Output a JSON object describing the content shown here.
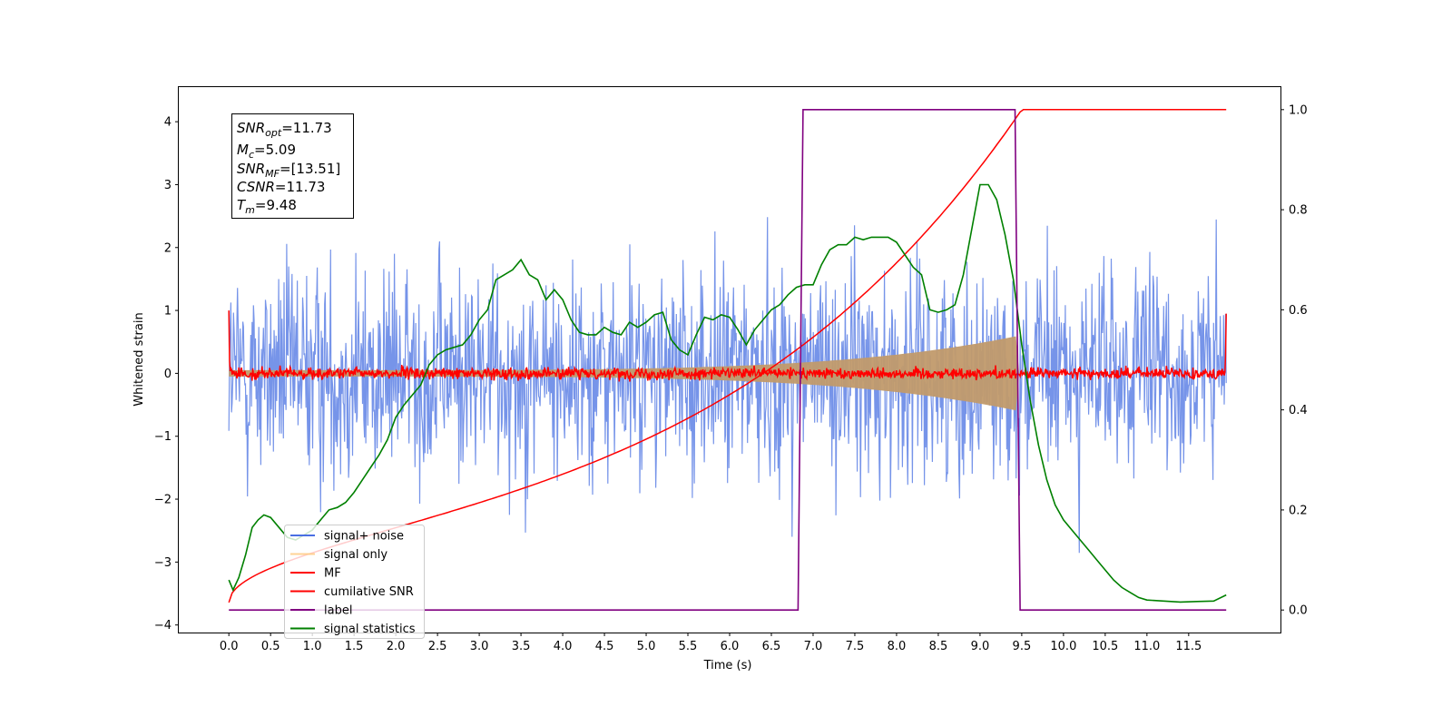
{
  "chart_data": {
    "type": "line",
    "xlabel": "Time (s)",
    "ylabel": "Whitened strain",
    "xlim": [
      -0.6,
      12.6
    ],
    "ylim_left": [
      -4.12,
      4.55
    ],
    "ylim_right": [
      -0.045,
      1.045
    ],
    "x_ticks": [
      "0.0",
      "0.5",
      "1.0",
      "1.5",
      "2.0",
      "2.5",
      "3.0",
      "3.5",
      "4.0",
      "4.5",
      "5.0",
      "5.5",
      "6.0",
      "6.5",
      "7.0",
      "7.5",
      "8.0",
      "8.5",
      "9.0",
      "9.5",
      "10.0",
      "10.5",
      "11.0",
      "11.5"
    ],
    "y_left_ticks": [
      "−4",
      "−3",
      "−2",
      "−1",
      "0",
      "1",
      "2",
      "3",
      "4"
    ],
    "y_right_ticks": [
      "0.0",
      "0.2",
      "0.4",
      "0.6",
      "0.8",
      "1.0"
    ],
    "legend_position": "lower-left",
    "legend": [
      {
        "label": "signal+ noise",
        "color": "#4a6fe3"
      },
      {
        "label": "signal only",
        "color": "#ffc87a"
      },
      {
        "label": "MF",
        "color": "#ff0000"
      },
      {
        "label": "cumilative SNR",
        "color": "#ff0000"
      },
      {
        "label": "label",
        "color": "#800080"
      },
      {
        "label": "signal statistics",
        "color": "#008000"
      }
    ],
    "stats_box": {
      "snr_opt": {
        "name": "SNR",
        "sub": "opt",
        "value": "=11.73"
      },
      "mc": {
        "name": "M",
        "sub": "c",
        "value": "=5.09"
      },
      "snr_mf": {
        "name": "SNR",
        "sub": "MF",
        "value": "=[13.51]"
      },
      "csnr": {
        "name": "CSNR",
        "sub": "",
        "value": "=11.73"
      },
      "tm": {
        "name": "T",
        "sub": "m",
        "value": "=9.48"
      }
    },
    "series": [
      {
        "name": "signal statistics",
        "axis": "right",
        "color": "#008000",
        "x": [
          0.0,
          0.05,
          0.12,
          0.2,
          0.28,
          0.35,
          0.42,
          0.5,
          0.6,
          0.7,
          0.8,
          0.9,
          1.0,
          1.1,
          1.2,
          1.3,
          1.4,
          1.5,
          1.6,
          1.7,
          1.8,
          1.9,
          2.0,
          2.1,
          2.2,
          2.3,
          2.4,
          2.5,
          2.6,
          2.7,
          2.8,
          2.9,
          3.0,
          3.1,
          3.2,
          3.3,
          3.4,
          3.5,
          3.6,
          3.7,
          3.8,
          3.9,
          4.0,
          4.1,
          4.2,
          4.3,
          4.4,
          4.5,
          4.6,
          4.7,
          4.8,
          4.9,
          5.0,
          5.1,
          5.2,
          5.3,
          5.4,
          5.5,
          5.6,
          5.7,
          5.8,
          5.9,
          6.0,
          6.1,
          6.2,
          6.3,
          6.4,
          6.5,
          6.6,
          6.7,
          6.8,
          6.9,
          7.0,
          7.1,
          7.2,
          7.3,
          7.4,
          7.5,
          7.6,
          7.7,
          7.8,
          7.9,
          8.0,
          8.1,
          8.2,
          8.3,
          8.4,
          8.5,
          8.6,
          8.7,
          8.8,
          8.9,
          9.0,
          9.1,
          9.2,
          9.3,
          9.4,
          9.5,
          9.6,
          9.7,
          9.8,
          9.9,
          10.0,
          10.1,
          10.2,
          10.3,
          10.4,
          10.5,
          10.6,
          10.7,
          10.8,
          10.9,
          11.0,
          11.2,
          11.4,
          11.6,
          11.8,
          11.95
        ],
        "values": [
          0.06,
          0.04,
          0.065,
          0.11,
          0.165,
          0.18,
          0.19,
          0.185,
          0.165,
          0.145,
          0.14,
          0.15,
          0.16,
          0.18,
          0.2,
          0.205,
          0.215,
          0.235,
          0.26,
          0.285,
          0.31,
          0.34,
          0.385,
          0.41,
          0.43,
          0.45,
          0.49,
          0.51,
          0.52,
          0.525,
          0.53,
          0.55,
          0.58,
          0.6,
          0.66,
          0.67,
          0.68,
          0.7,
          0.67,
          0.66,
          0.62,
          0.64,
          0.62,
          0.58,
          0.555,
          0.55,
          0.55,
          0.565,
          0.555,
          0.55,
          0.575,
          0.565,
          0.575,
          0.59,
          0.595,
          0.54,
          0.52,
          0.51,
          0.55,
          0.585,
          0.58,
          0.59,
          0.585,
          0.56,
          0.53,
          0.56,
          0.58,
          0.6,
          0.61,
          0.63,
          0.645,
          0.65,
          0.65,
          0.69,
          0.72,
          0.73,
          0.73,
          0.745,
          0.74,
          0.745,
          0.745,
          0.745,
          0.735,
          0.71,
          0.685,
          0.67,
          0.6,
          0.595,
          0.6,
          0.61,
          0.67,
          0.76,
          0.85,
          0.85,
          0.82,
          0.75,
          0.66,
          0.53,
          0.42,
          0.33,
          0.26,
          0.21,
          0.18,
          0.16,
          0.14,
          0.12,
          0.1,
          0.08,
          0.06,
          0.045,
          0.035,
          0.025,
          0.02,
          0.018,
          0.016,
          0.017,
          0.018,
          0.03
        ]
      },
      {
        "name": "label",
        "axis": "right",
        "color": "#800080",
        "x": [
          0.0,
          6.82,
          6.88,
          9.42,
          9.48,
          11.95
        ],
        "values": [
          0,
          0,
          1,
          1,
          0,
          0
        ]
      },
      {
        "name": "cumilative SNR",
        "axis": "right",
        "color": "#ff0000",
        "shape": "cumulative rise from 0.015 at t=0 to 1.0 at t=9.5, flat 1.0 to t=11.95"
      },
      {
        "name": "signal only",
        "axis": "left",
        "color": "#c69c6d",
        "shape": "chirp envelope growing to about ±0.6 at t=9.45, then zero"
      },
      {
        "name": "signal+ noise",
        "axis": "left",
        "color": "#4a6fe3",
        "shape": "noise, typical range about ±2, peaks near ±3"
      },
      {
        "name": "MF",
        "axis": "left",
        "color": "#ff0000",
        "shape": "noise about ±0.12, spikes to 1.0 at edges"
      }
    ]
  }
}
